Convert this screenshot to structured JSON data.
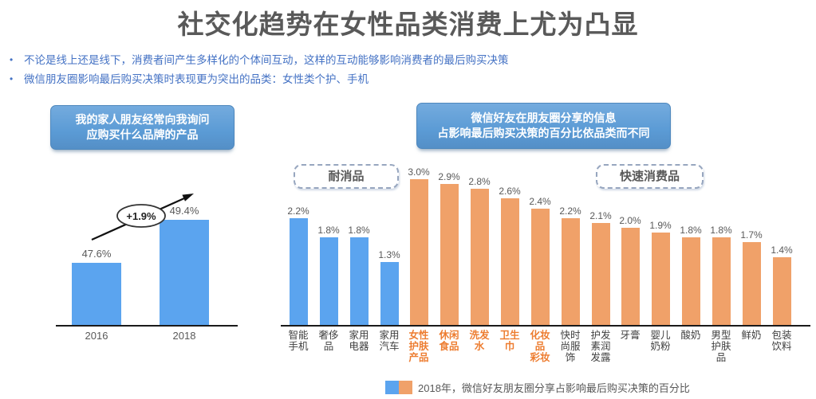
{
  "title": "社交化趋势在女性品类消费上尤为凸显",
  "bullets": [
    "不论是线上还是线下，消费者间产生多样化的个体间互动，这样的互动能够影响消费者的最后购买决策",
    "微信朋友圈影响最后购买决策时表现更为突出的品类：女性类个护、手机"
  ],
  "left_chart_header": {
    "line1": "我的家人朋友经常向我询问",
    "line2": "应购买什么品牌的产品"
  },
  "right_chart_header": {
    "line1": "微信好友在朋友圈分享的信息",
    "line2": "占影响最后购买决策的百分比依品类而不同"
  },
  "legend": {
    "text": "2018年，微信好友朋友圈分享占影响最后购买决策的百分比"
  },
  "colors": {
    "title": "#595959",
    "bullet": "#4472C4",
    "blue_bar": "#5BA4EF",
    "orange_bar": "#F0A169",
    "highlight_label": "#ED7D31",
    "header_box": "#5B9BD5"
  },
  "chart_data": [
    {
      "type": "bar",
      "title": "我的家人朋友经常向我询问应购买什么品牌的产品",
      "categories": [
        "2016",
        "2018"
      ],
      "values": [
        47.6,
        49.4
      ],
      "value_labels": [
        "47.6%",
        "49.4%"
      ],
      "annotation": "+1.9%",
      "ylabel": "",
      "xlabel": "",
      "ylim": [
        45,
        52
      ],
      "grid": false,
      "legend_position": "none"
    },
    {
      "type": "bar",
      "title": "微信好友在朋友圈分享的信息占影响最后购买决策的百分比依品类而不同",
      "legend": "2018年，微信好友朋友圈分享占影响最后购买决策的百分比",
      "ylim": [
        0,
        3.3
      ],
      "grid": false,
      "groups": [
        {
          "label": "耐消品",
          "color_key": "blue_bar"
        },
        {
          "label": "快速消费品",
          "color_key": "orange_bar"
        }
      ],
      "bars": [
        {
          "category": "智能手机",
          "label": "智能\n手机",
          "value": 2.2,
          "value_label": "2.2%",
          "group": "耐消品",
          "highlight": false
        },
        {
          "category": "奢侈品",
          "label": "奢侈\n品",
          "value": 1.8,
          "value_label": "1.8%",
          "group": "耐消品",
          "highlight": false
        },
        {
          "category": "家用电器",
          "label": "家用\n电器",
          "value": 1.8,
          "value_label": "1.8%",
          "group": "耐消品",
          "highlight": false
        },
        {
          "category": "家用汽车",
          "label": "家用\n汽车",
          "value": 1.3,
          "value_label": "1.3%",
          "group": "耐消品",
          "highlight": false
        },
        {
          "category": "女性护肤产品",
          "label": "女性\n护肤\n产品",
          "value": 3.0,
          "value_label": "3.0%",
          "group": "快速消费品",
          "highlight": true
        },
        {
          "category": "休闲食品",
          "label": "休闲\n食品",
          "value": 2.9,
          "value_label": "2.9%",
          "group": "快速消费品",
          "highlight": true
        },
        {
          "category": "洗发水",
          "label": "洗发\n水",
          "value": 2.8,
          "value_label": "2.8%",
          "group": "快速消费品",
          "highlight": true
        },
        {
          "category": "卫生巾",
          "label": "卫生\n巾",
          "value": 2.6,
          "value_label": "2.6%",
          "group": "快速消费品",
          "highlight": true
        },
        {
          "category": "化妆品彩妆",
          "label": "化妆\n品\n彩妆",
          "value": 2.4,
          "value_label": "2.4%",
          "group": "快速消费品",
          "highlight": true
        },
        {
          "category": "快时尚服饰",
          "label": "快时\n尚服\n饰",
          "value": 2.2,
          "value_label": "2.2%",
          "group": "快速消费品",
          "highlight": false
        },
        {
          "category": "护发素润发露",
          "label": "护发\n素润\n发露",
          "value": 2.1,
          "value_label": "2.1%",
          "group": "快速消费品",
          "highlight": false
        },
        {
          "category": "牙膏",
          "label": "牙膏",
          "value": 2.0,
          "value_label": "2.0%",
          "group": "快速消费品",
          "highlight": false
        },
        {
          "category": "婴儿奶粉",
          "label": "婴儿\n奶粉",
          "value": 1.9,
          "value_label": "1.9%",
          "group": "快速消费品",
          "highlight": false
        },
        {
          "category": "酸奶",
          "label": "酸奶",
          "value": 1.8,
          "value_label": "1.8%",
          "group": "快速消费品",
          "highlight": false
        },
        {
          "category": "男型护肤品",
          "label": "男型\n护肤\n品",
          "value": 1.8,
          "value_label": "1.8%",
          "group": "快速消费品",
          "highlight": false
        },
        {
          "category": "鲜奶",
          "label": "鲜奶",
          "value": 1.7,
          "value_label": "1.7%",
          "group": "快速消费品",
          "highlight": false
        },
        {
          "category": "包装饮料",
          "label": "包装\n饮料",
          "value": 1.4,
          "value_label": "1.4%",
          "group": "快速消费品",
          "highlight": false
        }
      ]
    }
  ]
}
